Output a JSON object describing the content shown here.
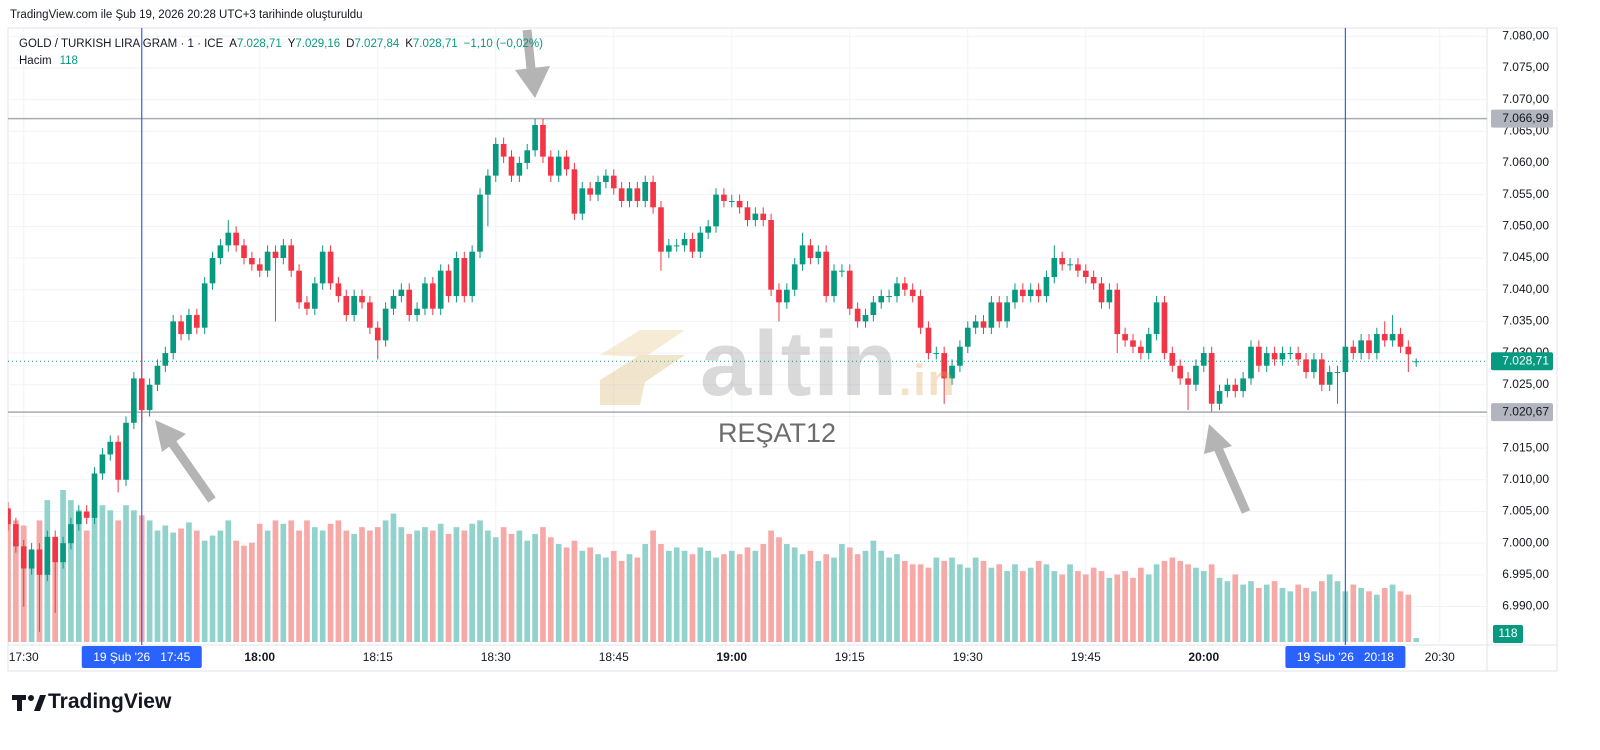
{
  "chart_data": {
    "type": "candlestick",
    "header": "TradingView.com ile Şub 19, 2026 20:28 UTC+3 tarihinde oluşturuldu",
    "title": "GOLD / TURKISH LIRA GRAM · 1 · ICE",
    "ohlc": [
      {
        "key": "A",
        "text": "7.028,71"
      },
      {
        "key": "Y",
        "text": "7.029,16"
      },
      {
        "key": "D",
        "text": "7.027,84"
      },
      {
        "key": "K",
        "text": "7.028,71"
      }
    ],
    "change": "−1,10 (−0,02%)",
    "volume_name": "Hacim",
    "watermark": {
      "main": "altin",
      "suffix": ".in",
      "caption": "REŞAT12"
    },
    "brand": "TradingView",
    "up_color": "#089981",
    "down_color": "#f23645",
    "volume_up_color": "#92d2cc",
    "volume_down_color": "#f7a9a7",
    "x": [
      "17:28",
      "17:29",
      "17:30",
      "17:31",
      "17:32",
      "17:33",
      "17:34",
      "17:35",
      "17:36",
      "17:37",
      "17:38",
      "17:39",
      "17:40",
      "17:41",
      "17:42",
      "17:43",
      "17:44",
      "17:45",
      "17:46",
      "17:47",
      "17:48",
      "17:49",
      "17:50",
      "17:51",
      "17:52",
      "17:53",
      "17:54",
      "17:55",
      "17:56",
      "17:57",
      "17:58",
      "17:59",
      "18:00",
      "18:01",
      "18:02",
      "18:03",
      "18:04",
      "18:05",
      "18:06",
      "18:07",
      "18:08",
      "18:09",
      "18:10",
      "18:11",
      "18:12",
      "18:13",
      "18:14",
      "18:15",
      "18:16",
      "18:17",
      "18:18",
      "18:19",
      "18:20",
      "18:21",
      "18:22",
      "18:23",
      "18:24",
      "18:25",
      "18:26",
      "18:27",
      "18:28",
      "18:29",
      "18:30",
      "18:31",
      "18:32",
      "18:33",
      "18:34",
      "18:35",
      "18:36",
      "18:37",
      "18:38",
      "18:39",
      "18:40",
      "18:41",
      "18:42",
      "18:43",
      "18:44",
      "18:45",
      "18:46",
      "18:47",
      "18:48",
      "18:49",
      "18:50",
      "18:51",
      "18:52",
      "18:53",
      "18:54",
      "18:55",
      "18:56",
      "18:57",
      "18:58",
      "18:59",
      "19:00",
      "19:01",
      "19:02",
      "19:03",
      "19:04",
      "19:05",
      "19:06",
      "19:07",
      "19:08",
      "19:09",
      "19:10",
      "19:11",
      "19:12",
      "19:13",
      "19:14",
      "19:15",
      "19:16",
      "19:17",
      "19:18",
      "19:19",
      "19:20",
      "19:21",
      "19:22",
      "19:23",
      "19:24",
      "19:25",
      "19:26",
      "19:27",
      "19:28",
      "19:29",
      "19:30",
      "19:31",
      "19:32",
      "19:33",
      "19:34",
      "19:35",
      "19:36",
      "19:37",
      "19:38",
      "19:39",
      "19:40",
      "19:41",
      "19:42",
      "19:43",
      "19:44",
      "19:45",
      "19:46",
      "19:47",
      "19:48",
      "19:49",
      "19:50",
      "19:51",
      "19:52",
      "19:53",
      "19:54",
      "19:55",
      "19:56",
      "19:57",
      "19:58",
      "19:59",
      "20:00",
      "20:01",
      "20:02",
      "20:03",
      "20:04",
      "20:05",
      "20:06",
      "20:07",
      "20:08",
      "20:09",
      "20:10",
      "20:11",
      "20:12",
      "20:13",
      "20:14",
      "20:15",
      "20:16",
      "20:17",
      "20:18",
      "20:19",
      "20:20",
      "20:21",
      "20:22",
      "20:23",
      "20:24",
      "20:25",
      "20:26",
      "20:27"
    ],
    "open": [
      7005.5,
      7003,
      6999.5,
      6996,
      6999,
      6995,
      7001,
      6997,
      7000,
      7003,
      7005,
      7004,
      7011,
      7014,
      7016,
      7010,
      7019,
      7026,
      7021,
      7025,
      7028,
      7030,
      7035,
      7033,
      7036,
      7034,
      7041,
      7045,
      7047,
      7049,
      7047,
      7045,
      7044,
      7043,
      7046,
      7045,
      7047,
      7043,
      7038,
      7037,
      7041,
      7046,
      7041,
      7039,
      7036,
      7039,
      7038,
      7034,
      7032,
      7037,
      7039,
      7040,
      7036,
      7037,
      7041,
      7037,
      7043,
      7039,
      7045,
      7039,
      7046,
      7055,
      7058,
      7063,
      7061,
      7058,
      7060,
      7062,
      7066,
      7061,
      7058,
      7061,
      7059,
      7052,
      7056,
      7055,
      7057,
      7058,
      7056,
      7054,
      7056,
      7054,
      7057,
      7053,
      7046,
      7047,
      7047,
      7048,
      7046,
      7049,
      7050,
      7055,
      7054,
      7054,
      7053,
      7051,
      7052,
      7051,
      7040,
      7038,
      7040,
      7044,
      7047,
      7045,
      7046,
      7039,
      7043,
      7043,
      7037,
      7035,
      7036,
      7038,
      7039,
      7039,
      7041,
      7040,
      7039,
      7034,
      7030,
      7030,
      7026,
      7028,
      7031,
      7034,
      7035,
      7034,
      7038,
      7035,
      7038,
      7040,
      7039,
      7040,
      7039,
      7042,
      7045,
      7044,
      7044,
      7043,
      7042,
      7041,
      7038,
      7040,
      7033,
      7032,
      7031,
      7030,
      7033,
      7038,
      7030,
      7028,
      7026,
      7025,
      7028,
      7030,
      7022,
      7024,
      7025,
      7024,
      7026,
      7031,
      7028,
      7030,
      7029,
      7030,
      7030,
      7029,
      7027,
      7029,
      7025,
      7027,
      7027,
      7031,
      7030,
      7032,
      7030,
      7033,
      7032,
      7033,
      7031,
      7028.71
    ],
    "high": [
      7006.5,
      7004,
      7000.5,
      7000,
      7000,
      7002,
      7002,
      7001,
      7004,
      7006,
      7006,
      7012,
      7015,
      7017,
      7017,
      7020,
      7027,
      7030,
      7026,
      7029,
      7031,
      7036,
      7036,
      7037,
      7037,
      7042,
      7046,
      7048,
      7051,
      7050,
      7048,
      7046,
      7045,
      7047,
      7047,
      7048,
      7048,
      7044,
      7039,
      7042,
      7047,
      7047,
      7042,
      7040,
      7040,
      7040,
      7039,
      7035,
      7038,
      7040,
      7041,
      7041,
      7038,
      7042,
      7042,
      7044,
      7044,
      7046,
      7046,
      7047,
      7056,
      7059,
      7064,
      7064,
      7062,
      7061,
      7063,
      7067,
      7067,
      7062,
      7062,
      7062,
      7060,
      7057,
      7057,
      7058,
      7059,
      7059,
      7057,
      7057,
      7057,
      7058,
      7058,
      7054,
      7048,
      7048,
      7049,
      7049,
      7050,
      7051,
      7056,
      7056,
      7055,
      7055,
      7054,
      7053,
      7053,
      7052,
      7041,
      7041,
      7045,
      7049,
      7048,
      7047,
      7047,
      7044,
      7044,
      7044,
      7038,
      7037,
      7039,
      7040,
      7040,
      7042,
      7042,
      7041,
      7040,
      7035,
      7031,
      7031,
      7029,
      7032,
      7035,
      7036,
      7036,
      7039,
      7039,
      7039,
      7041,
      7041,
      7041,
      7041,
      7043,
      7047,
      7046,
      7045,
      7045,
      7044,
      7043,
      7042,
      7041,
      7041,
      7034,
      7033,
      7032,
      7034,
      7039,
      7039,
      7031,
      7029,
      7027,
      7029,
      7031,
      7031,
      7025,
      7026,
      7026,
      7027,
      7032,
      7032,
      7031,
      7031,
      7031,
      7031,
      7031,
      7030,
      7030,
      7030,
      7028,
      7028,
      7032,
      7032,
      7033,
      7033,
      7034,
      7035,
      7036,
      7034,
      7032,
      7029.16
    ],
    "low": [
      7002,
      6998.5,
      6990,
      6995,
      6986,
      6994,
      6989,
      6996,
      6999,
      7002,
      7003,
      7003,
      7010,
      7013,
      7008,
      7009,
      7018,
      7019,
      7020,
      7024,
      7027,
      7029,
      7032,
      7032,
      7033,
      7033,
      7040,
      7044,
      7046,
      7046,
      7044,
      7043,
      7042,
      7042,
      7035,
      7044,
      7042,
      7037,
      7036,
      7036,
      7040,
      7040,
      7038,
      7035,
      7035,
      7037,
      7033,
      7029,
      7031,
      7036,
      7038,
      7035,
      7035,
      7036,
      7036,
      7036,
      7038,
      7038,
      7038,
      7038,
      7045,
      7050,
      7057,
      7060,
      7057,
      7057,
      7059,
      7061,
      7060,
      7057,
      7057,
      7058,
      7051,
      7051,
      7054,
      7054,
      7056,
      7055,
      7053,
      7053,
      7053,
      7053,
      7052,
      7043,
      7045,
      7046,
      7046,
      7045,
      7045,
      7048,
      7049,
      7053,
      7053,
      7052,
      7050,
      7050,
      7050,
      7039,
      7035,
      7037,
      7039,
      7043,
      7044,
      7044,
      7038,
      7038,
      7042,
      7036,
      7034,
      7034,
      7035,
      7037,
      7038,
      7038,
      7039,
      7038,
      7033,
      7029,
      7029,
      7022,
      7025,
      7027,
      7030,
      7033,
      7033,
      7033,
      7034,
      7034,
      7037,
      7038,
      7038,
      7038,
      7038,
      7041,
      7043,
      7043,
      7042,
      7041,
      7040,
      7037,
      7037,
      7030,
      7031,
      7030,
      7029,
      7029,
      7032,
      7029,
      7027,
      7025,
      7021,
      7024,
      7027,
      7020.7,
      7021,
      7023,
      7023,
      7023,
      7025,
      7027,
      7027,
      7028,
      7028,
      7029,
      7028,
      7026,
      7026,
      7024,
      7024,
      7022,
      7026,
      7029,
      7029,
      7029,
      7029,
      7031,
      7031,
      7030,
      7027,
      7027.84
    ],
    "close": [
      7003,
      6999.5,
      6996,
      6999,
      6995,
      7001,
      6997,
      7000,
      7003,
      7005,
      7004,
      7011,
      7014,
      7016,
      7010,
      7019,
      7026,
      7021,
      7025,
      7028,
      7030,
      7035,
      7033,
      7036,
      7034,
      7041,
      7045,
      7047,
      7049,
      7047,
      7045,
      7044,
      7043,
      7046,
      7045,
      7047,
      7043,
      7038,
      7037,
      7041,
      7046,
      7041,
      7039,
      7036,
      7039,
      7038,
      7034,
      7032,
      7037,
      7039,
      7040,
      7036,
      7037,
      7041,
      7037,
      7043,
      7039,
      7045,
      7039,
      7046,
      7055,
      7058,
      7063,
      7061,
      7058,
      7060,
      7062,
      7066,
      7061,
      7058,
      7061,
      7059,
      7052,
      7056,
      7055,
      7057,
      7058,
      7056,
      7054,
      7056,
      7054,
      7057,
      7053,
      7046,
      7047,
      7047,
      7048,
      7046,
      7049,
      7050,
      7055,
      7054,
      7054,
      7053,
      7051,
      7052,
      7051,
      7040,
      7038,
      7040,
      7044,
      7047,
      7045,
      7046,
      7039,
      7043,
      7043,
      7037,
      7035,
      7036,
      7038,
      7039,
      7039,
      7041,
      7040,
      7039,
      7034,
      7030,
      7030,
      7026,
      7028,
      7031,
      7034,
      7035,
      7034,
      7038,
      7035,
      7038,
      7040,
      7039,
      7040,
      7039,
      7042,
      7045,
      7044,
      7044,
      7043,
      7042,
      7041,
      7038,
      7040,
      7033,
      7032,
      7031,
      7030,
      7033,
      7038,
      7030,
      7028,
      7026,
      7025,
      7028,
      7030,
      7022,
      7024,
      7025,
      7024,
      7026,
      7031,
      7028,
      7030,
      7029,
      7030,
      7030,
      7029,
      7027,
      7029,
      7025,
      7027,
      7027,
      7031,
      7030,
      7032,
      7030,
      7033,
      7032,
      7033,
      7031,
      7029.81,
      7028.71
    ],
    "volume": [
      3900,
      3600,
      3450,
      2700,
      3600,
      4200,
      2850,
      4500,
      4200,
      3900,
      3300,
      3750,
      4050,
      3900,
      3600,
      4050,
      3900,
      3750,
      3600,
      3300,
      3450,
      3240,
      3360,
      3540,
      3300,
      3000,
      3150,
      3300,
      3600,
      3000,
      2850,
      2940,
      3500,
      3300,
      3600,
      3500,
      3600,
      3300,
      3600,
      3400,
      3300,
      3500,
      3600,
      3300,
      3200,
      3400,
      3300,
      3400,
      3600,
      3800,
      3400,
      3200,
      3300,
      3400,
      3300,
      3500,
      3200,
      3400,
      3300,
      3500,
      3600,
      3300,
      3100,
      3400,
      3200,
      3300,
      3000,
      3200,
      3400,
      3100,
      2900,
      2800,
      3000,
      2700,
      2800,
      2600,
      2500,
      2700,
      2400,
      2600,
      2500,
      2900,
      3300,
      2900,
      2700,
      2800,
      2700,
      2600,
      2800,
      2700,
      2500,
      2600,
      2700,
      2600,
      2800,
      2700,
      2900,
      3300,
      3100,
      2900,
      2800,
      2600,
      2700,
      2400,
      2600,
      2500,
      2900,
      2800,
      2600,
      2700,
      3000,
      2700,
      2500,
      2600,
      2400,
      2300,
      2300,
      2200,
      2500,
      2400,
      2500,
      2300,
      2200,
      2500,
      2400,
      2200,
      2300,
      2100,
      2300,
      2100,
      2200,
      2400,
      2300,
      2100,
      2000,
      2300,
      2100,
      2000,
      2200,
      2100,
      1900,
      2000,
      2100,
      1900,
      2200,
      2000,
      2300,
      2400,
      2500,
      2400,
      2300,
      2200,
      2100,
      2300,
      1900,
      1800,
      2000,
      1700,
      1800,
      1600,
      1700,
      1800,
      1600,
      1500,
      1700,
      1600,
      1500,
      1800,
      2000,
      1800,
      1500,
      1700,
      1600,
      1500,
      1400,
      1600,
      1700,
      1500,
      1400,
      118
    ],
    "xlim": [
      "17:28",
      "20:36"
    ],
    "xticks": [
      "17:30",
      "18:00",
      "18:15",
      "18:30",
      "18:45",
      "19:00",
      "19:15",
      "19:30",
      "19:45",
      "20:00",
      "20:30"
    ],
    "ylim": [
      6984.4,
      7081.3
    ],
    "yticks": [
      {
        "value": 7080,
        "label": "7.080,00"
      },
      {
        "value": 7075,
        "label": "7.075,00"
      },
      {
        "value": 7070,
        "label": "7.070,00"
      },
      {
        "value": 7065,
        "label": "7.065,00"
      },
      {
        "value": 7060,
        "label": "7.060,00"
      },
      {
        "value": 7055,
        "label": "7.055,00"
      },
      {
        "value": 7050,
        "label": "7.050,00"
      },
      {
        "value": 7045,
        "label": "7.045,00"
      },
      {
        "value": 7040,
        "label": "7.040,00"
      },
      {
        "value": 7035,
        "label": "7.035,00"
      },
      {
        "value": 7030,
        "label": "7.030,00"
      },
      {
        "value": 7025,
        "label": "7.025,00"
      },
      {
        "value": 7020,
        "label": "7.020,00"
      },
      {
        "value": 7015,
        "label": "7.015,00"
      },
      {
        "value": 7010,
        "label": "7.010,00"
      },
      {
        "value": 7005,
        "label": "7.005,00"
      },
      {
        "value": 7000,
        "label": "7.000,00"
      },
      {
        "value": 6995,
        "label": "6.995,00"
      },
      {
        "value": 6990,
        "label": "6.990,00"
      }
    ],
    "grid": true,
    "hlines": [
      {
        "value": 7066.99,
        "label": "7.066,99"
      },
      {
        "value": 7020.67,
        "label": "7.020,67"
      }
    ],
    "last_price": {
      "value": 7028.71,
      "label": "7.028,71"
    },
    "markers": [
      {
        "x": "17:45",
        "label": "19 Şub '26   17:45"
      },
      {
        "x": "20:18",
        "label": "19 Şub '26   20:18"
      }
    ]
  }
}
